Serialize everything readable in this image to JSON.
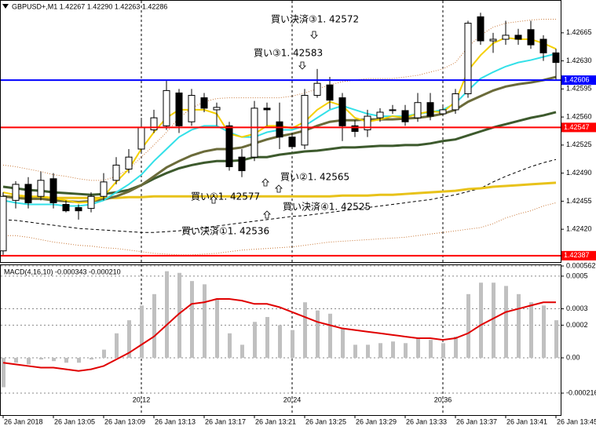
{
  "chart_data": [
    {
      "type": "candlestick",
      "title": "GBPUSD+,M1  1.42267 1.42290 1.42263 1.42286",
      "categories": [
        "26 Jan 2018",
        null,
        null,
        null,
        "26 Jan 13:05",
        null,
        null,
        null,
        "26 Jan 13:09",
        null,
        null,
        null,
        "26 Jan 13:13",
        null,
        null,
        null,
        "26 Jan 13:17",
        null,
        null,
        null,
        "26 Jan 13:21",
        null,
        null,
        null,
        "26 Jan 13:25",
        null,
        null,
        null,
        "26 Jan 13:29",
        null,
        null,
        null,
        "26 Jan 13:33",
        null,
        null,
        null,
        "26 Jan 13:37",
        null,
        null,
        null,
        "26 Jan 13:41",
        null,
        null,
        null,
        "26 Jan 13:45"
      ],
      "time_markers": [
        null,
        null,
        null,
        null,
        null,
        null,
        null,
        null,
        null,
        null,
        null,
        "20:12",
        null,
        null,
        null,
        null,
        null,
        null,
        null,
        null,
        null,
        null,
        null,
        "20:24",
        null,
        null,
        null,
        null,
        null,
        null,
        null,
        null,
        null,
        null,
        null,
        "20:36",
        null,
        null,
        null,
        null,
        null,
        null,
        null,
        null,
        null
      ],
      "open": [
        1.42393,
        1.42456,
        1.42476,
        1.42461,
        1.42483,
        1.42451,
        1.42447,
        1.42446,
        1.42461,
        1.42481,
        1.42495,
        1.4252,
        1.42544,
        1.42549,
        1.4259,
        1.42554,
        1.42584,
        1.42569,
        1.42549,
        1.4251,
        1.4251,
        1.42571,
        1.42554,
        1.42535,
        1.42525,
        1.42587,
        1.426,
        1.42584,
        1.42549,
        1.42544,
        1.42559,
        1.42568,
        1.42568,
        1.42559,
        1.42578,
        1.42564,
        1.42569,
        1.42589,
        1.42685,
        1.42655,
        1.42657,
        1.42662,
        1.42669,
        1.42657,
        1.4264
      ],
      "high": [
        1.42466,
        1.4248,
        1.42485,
        1.42492,
        1.4249,
        1.42456,
        1.42451,
        1.42466,
        1.4249,
        1.4251,
        1.4252,
        1.42559,
        1.42569,
        1.42605,
        1.42595,
        1.42595,
        1.4259,
        1.42578,
        1.42554,
        1.4252,
        1.4258,
        1.42578,
        1.42578,
        1.4254,
        1.42595,
        1.4262,
        1.4261,
        1.4259,
        1.42556,
        1.42569,
        1.42571,
        1.42575,
        1.42575,
        1.4259,
        1.4259,
        1.42575,
        1.42595,
        1.4268,
        1.4269,
        1.42665,
        1.4268,
        1.4267,
        1.4268,
        1.42662,
        1.42645
      ],
      "low": [
        1.42388,
        1.42446,
        1.42446,
        1.42456,
        1.42446,
        1.42441,
        1.42432,
        1.42441,
        1.42456,
        1.42476,
        1.4249,
        1.42515,
        1.4254,
        1.42544,
        1.4254,
        1.42549,
        1.42566,
        1.42549,
        1.42493,
        1.42485,
        1.42505,
        1.42549,
        1.4252,
        1.4252,
        1.4252,
        1.42584,
        1.4257,
        1.4253,
        1.42535,
        1.42535,
        1.42554,
        1.42564,
        1.42549,
        1.42554,
        1.42556,
        1.42561,
        1.42564,
        1.42584,
        1.4265,
        1.4264,
        1.4265,
        1.4265,
        1.42645,
        1.4263,
        1.42606
      ],
      "close": [
        1.42461,
        1.42476,
        1.42453,
        1.42481,
        1.42453,
        1.42443,
        1.42443,
        1.42461,
        1.42479,
        1.425,
        1.4251,
        1.42547,
        1.42559,
        1.42593,
        1.42549,
        1.42587,
        1.42571,
        1.42572,
        1.42498,
        1.42493,
        1.42571,
        1.42569,
        1.42535,
        1.42523,
        1.42587,
        1.42602,
        1.42581,
        1.42549,
        1.42542,
        1.42561,
        1.42566,
        1.42569,
        1.42554,
        1.42578,
        1.42561,
        1.42569,
        1.42589,
        1.42677,
        1.42655,
        1.42657,
        1.42662,
        1.42657,
        1.4265,
        1.4264,
        1.42628
      ],
      "up_color": "#ffffff",
      "down_color": "#000000",
      "overlays": [
        {
          "color": "#c87533",
          "width": 1,
          "dash": "1 2",
          "values": [
            1.425,
            1.42498,
            1.42495,
            1.42492,
            1.42488,
            1.42486,
            1.42483,
            1.42481,
            1.42481,
            1.42486,
            1.42495,
            1.4251,
            1.42525,
            1.42541,
            1.42559,
            1.42571,
            1.42579,
            1.42583,
            1.42584,
            1.42584,
            1.42584,
            1.42584,
            1.42584,
            1.42586,
            1.4259,
            1.42595,
            1.426,
            1.42604,
            1.42606,
            1.42608,
            1.42608,
            1.42608,
            1.4261,
            1.42612,
            1.42616,
            1.4262,
            1.42628,
            1.42647,
            1.42662,
            1.42672,
            1.42677,
            1.42679,
            1.42681,
            1.42682,
            1.42682
          ]
        },
        {
          "color": "#c87533",
          "width": 1,
          "dash": "1 2",
          "values": [
            1.42412,
            1.42412,
            1.4241,
            1.42407,
            1.42404,
            1.42402,
            1.424,
            1.42399,
            1.42397,
            1.42396,
            1.42394,
            1.42392,
            1.4239,
            1.42389,
            1.42388,
            1.42388,
            1.42389,
            1.4239,
            1.42392,
            1.42394,
            1.42395,
            1.42396,
            1.42397,
            1.42398,
            1.424,
            1.42402,
            1.42404,
            1.42405,
            1.42406,
            1.42407,
            1.42408,
            1.42409,
            1.4241,
            1.42412,
            1.42414,
            1.42416,
            1.42418,
            1.4242,
            1.42422,
            1.42427,
            1.42434,
            1.42439,
            1.42443,
            1.42449,
            1.42453
          ]
        },
        {
          "color": "#000000",
          "width": 1,
          "dash": "4 3",
          "values": [
            1.42432,
            1.42431,
            1.42429,
            1.42427,
            1.42425,
            1.42423,
            1.42421,
            1.4242,
            1.42419,
            1.42418,
            1.42417,
            1.42416,
            1.42416,
            1.42417,
            1.42418,
            1.4242,
            1.42422,
            1.42424,
            1.42426,
            1.42428,
            1.4243,
            1.42432,
            1.42434,
            1.42436,
            1.42437,
            1.42439,
            1.42441,
            1.42443,
            1.42445,
            1.42447,
            1.42449,
            1.42451,
            1.42453,
            1.42455,
            1.42457,
            1.4246,
            1.42463,
            1.42467,
            1.42471,
            1.42479,
            1.42486,
            1.42492,
            1.42498,
            1.42503,
            1.42507
          ]
        },
        {
          "color": "#e8c21a",
          "width": 3,
          "dash": "none",
          "values": [
            1.42461,
            1.42461,
            1.4246,
            1.4246,
            1.42459,
            1.42459,
            1.42459,
            1.42459,
            1.42459,
            1.42459,
            1.4246,
            1.4246,
            1.42461,
            1.42461,
            1.42461,
            1.42461,
            1.42461,
            1.42461,
            1.42461,
            1.42461,
            1.42461,
            1.42461,
            1.42461,
            1.42461,
            1.42461,
            1.42461,
            1.42461,
            1.42462,
            1.42462,
            1.42462,
            1.42463,
            1.42463,
            1.42464,
            1.42465,
            1.42466,
            1.42467,
            1.42468,
            1.4247,
            1.42471,
            1.42473,
            1.42474,
            1.42475,
            1.42476,
            1.42477,
            1.42478
          ]
        },
        {
          "color": "#3d5a2d",
          "width": 3,
          "dash": "none",
          "values": [
            1.42473,
            1.42471,
            1.42469,
            1.42468,
            1.42466,
            1.42465,
            1.42464,
            1.42463,
            1.42464,
            1.42466,
            1.42469,
            1.42475,
            1.42483,
            1.4249,
            1.42496,
            1.425,
            1.42503,
            1.42505,
            1.42505,
            1.42506,
            1.4251,
            1.4251,
            1.42513,
            1.42515,
            1.42517,
            1.42518,
            1.4252,
            1.42522,
            1.42522,
            1.42523,
            1.42524,
            1.42524,
            1.42525,
            1.42525,
            1.42527,
            1.4253,
            1.42532,
            1.42537,
            1.42542,
            1.42547,
            1.42551,
            1.42555,
            1.42559,
            1.42562,
            1.42566
          ]
        },
        {
          "color": "#6b6b3a",
          "width": 3,
          "dash": "none",
          "values": [
            1.42461,
            1.42459,
            1.42458,
            1.42458,
            1.42456,
            1.42455,
            1.42454,
            1.42455,
            1.42457,
            1.42461,
            1.42467,
            1.42475,
            1.42486,
            1.42497,
            1.42505,
            1.42512,
            1.42517,
            1.4252,
            1.4252,
            1.42522,
            1.42527,
            1.42532,
            1.42536,
            1.42539,
            1.42543,
            1.42549,
            1.42554,
            1.42556,
            1.42556,
            1.42557,
            1.42557,
            1.42557,
            1.42558,
            1.42559,
            1.42561,
            1.42564,
            1.42569,
            1.42579,
            1.42586,
            1.42593,
            1.42598,
            1.42601,
            1.42603,
            1.42606,
            1.4261
          ]
        },
        {
          "color": "#33e0e8",
          "width": 2,
          "dash": "none",
          "values": [
            1.42456,
            1.42453,
            1.42451,
            1.42451,
            1.42451,
            1.42449,
            1.42449,
            1.42451,
            1.42456,
            1.42466,
            1.42476,
            1.42488,
            1.42505,
            1.4252,
            1.42535,
            1.42544,
            1.42549,
            1.42549,
            1.42541,
            1.42535,
            1.42535,
            1.42541,
            1.42544,
            1.42544,
            1.42549,
            1.42559,
            1.42569,
            1.42574,
            1.42569,
            1.42564,
            1.42561,
            1.42561,
            1.42561,
            1.42564,
            1.42566,
            1.42569,
            1.42577,
            1.42593,
            1.42608,
            1.42616,
            1.42623,
            1.42628,
            1.42631,
            1.42635,
            1.42639
          ]
        },
        {
          "color": "#f5d000",
          "width": 2,
          "dash": "none",
          "values": [
            1.42466,
            1.42463,
            1.42461,
            1.42461,
            1.42459,
            1.42456,
            1.42453,
            1.42454,
            1.42461,
            1.42479,
            1.42495,
            1.4252,
            1.42541,
            1.42559,
            1.42569,
            1.42569,
            1.42569,
            1.42564,
            1.42539,
            1.42535,
            1.42539,
            1.42549,
            1.42549,
            1.42546,
            1.42554,
            1.42569,
            1.42579,
            1.42574,
            1.42559,
            1.42554,
            1.42557,
            1.42561,
            1.42559,
            1.42564,
            1.42567,
            1.42566,
            1.42579,
            1.42618,
            1.42637,
            1.42652,
            1.42659,
            1.42657,
            1.42657,
            1.42652,
            1.42645
          ]
        }
      ],
      "hlines": [
        {
          "value": 1.42606,
          "color": "#0000ff"
        },
        {
          "value": 1.42547,
          "color": "#ff0000"
        },
        {
          "value": 1.42387,
          "color": "#ff0000"
        }
      ],
      "annotations": [
        "買い決済③1. 42572",
        "買い③1. 42583",
        "買い②1. 42565",
        "買い①1. 42577",
        "買い決済④1. 42525",
        "買い決済①1. 42536"
      ],
      "ylim": [
        1.4238,
        1.42704
      ],
      "yticks": [
        1.42665,
        {
          "value": 1.4263,
          "label": "1.42630"
        },
        1.42595,
        {
          "value": 1.4256,
          "label": "1.42560"
        },
        1.42525,
        {
          "value": 1.4249,
          "label": "1.42490"
        },
        1.42455,
        {
          "value": 1.4242,
          "label": "1.42420"
        }
      ]
    },
    {
      "type": "macd",
      "title": "MACD(4,16,10) -0.000343 -0.000210",
      "histogram": {
        "color": "#c0c0c0",
        "values": [
          -0.00018,
          -3e-05,
          -4e-05,
          -1e-05,
          -2e-05,
          -3e-05,
          -3e-05,
          -1e-05,
          5e-05,
          0.00015,
          0.00023,
          0.00032,
          0.00039,
          0.00053,
          0.00052,
          0.00047,
          0.00045,
          0.00036,
          0.00015,
          8e-05,
          0.00022,
          0.00025,
          0.0002,
          0.00017,
          0.00034,
          0.00029,
          0.00027,
          0.00018,
          8e-05,
          8e-05,
          9e-05,
          0.0001,
          9e-05,
          0.00012,
          0.00011,
          9e-05,
          0.00013,
          0.00039,
          0.00046,
          0.00046,
          0.00044,
          0.00039,
          0.00034,
          0.00032,
          0.00023
        ]
      },
      "signal": {
        "color": "#e00000",
        "values": [
          -3e-05,
          -4e-05,
          -5e-05,
          -6e-05,
          -6e-05,
          -7e-05,
          -8e-05,
          -7e-05,
          -5e-05,
          -1e-05,
          3e-05,
          8e-05,
          0.00013,
          0.0002,
          0.00027,
          0.00033,
          0.00034,
          0.00036,
          0.00036,
          0.00035,
          0.00033,
          0.00033,
          0.00031,
          0.00028,
          0.00025,
          0.00022,
          0.0002,
          0.00018,
          0.00017,
          0.00016,
          0.00015,
          0.00014,
          0.00013,
          0.00012,
          0.00012,
          0.00011,
          0.00012,
          0.00015,
          0.0002,
          0.00024,
          0.00028,
          0.0003,
          0.00032,
          0.00034,
          0.00034
        ]
      },
      "ylim": [
        -0.000216,
        0.000562
      ],
      "yticks": [
        0.000562,
        0.0005,
        0.0003,
        0.0002,
        {
          "value": 0,
          "label": "0.00"
        },
        -0.000216
      ],
      "grid": true
    }
  ]
}
